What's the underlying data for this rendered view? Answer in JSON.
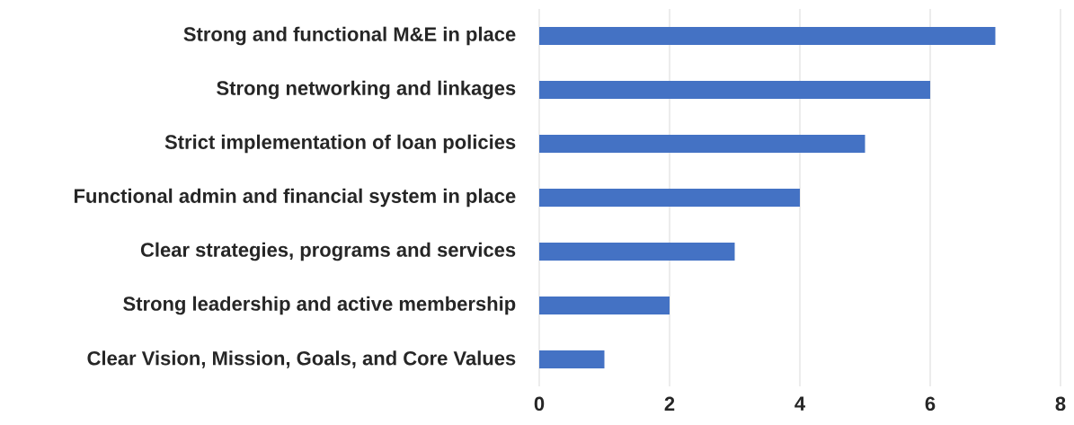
{
  "chart_data": {
    "type": "bar",
    "orientation": "horizontal",
    "categories": [
      "Strong and functional M&E in place",
      "Strong networking and linkages",
      "Strict implementation of loan policies",
      "Functional admin and financial system in place",
      "Clear strategies, programs and services",
      "Strong leadership and active membership",
      "Clear Vision, Mission, Goals, and Core Values"
    ],
    "values": [
      7,
      6,
      5,
      4,
      3,
      2,
      1
    ],
    "color": "#4472c4",
    "xlim": [
      0,
      8
    ],
    "xticks": [
      0,
      2,
      4,
      6,
      8
    ],
    "grid": "x"
  }
}
